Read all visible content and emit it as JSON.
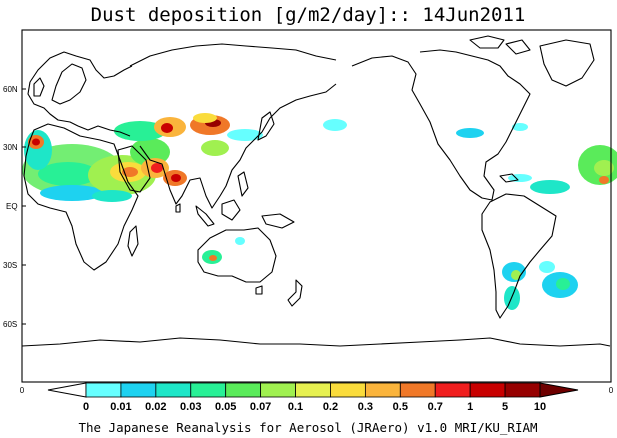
{
  "title": "Dust deposition [g/m2/day]:: 14Jun2011",
  "lat_labels": [
    "60N",
    "30N",
    "EQ",
    "30S",
    "60S"
  ],
  "lon_labels": [
    "0",
    "0"
  ],
  "colorbar": {
    "labels": [
      "0",
      "0.01",
      "0.02",
      "0.03",
      "0.05",
      "0.07",
      "0.1",
      "0.2",
      "0.3",
      "0.5",
      "0.7",
      "1",
      "5",
      "10"
    ],
    "colors": [
      "#ffffff",
      "#66ffff",
      "#1ed2f0",
      "#1ee6c8",
      "#28f096",
      "#5aeb5a",
      "#a0f050",
      "#e6f050",
      "#fadc3c",
      "#fab43c",
      "#f07828",
      "#f01e1e",
      "#c80000",
      "#960000",
      "#6e0000"
    ]
  },
  "footer": "The Japanese Reanalysis for Aerosol (JRAero) v1.0 MRI/KU_RIAM"
}
